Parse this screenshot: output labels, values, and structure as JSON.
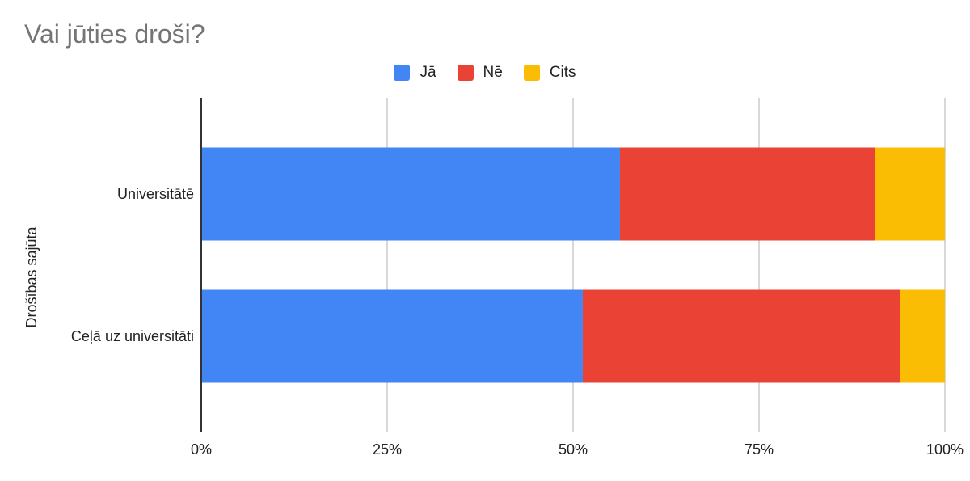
{
  "chart_data": {
    "type": "bar",
    "orientation": "horizontal",
    "stacked": "percent",
    "title": "Vai jūties droši?",
    "xlabel": "",
    "ylabel": "Drošības sajūta",
    "categories": [
      "Universitātē",
      "Ceļā uz universitāti"
    ],
    "series": [
      {
        "name": "Jā",
        "color": "#4285F4",
        "values": [
          56.3,
          51.3
        ]
      },
      {
        "name": "Nē",
        "color": "#EA4335",
        "values": [
          34.3,
          42.7
        ]
      },
      {
        "name": "Cits",
        "color": "#FBBC04",
        "values": [
          9.4,
          6.0
        ]
      }
    ],
    "xlim": [
      0,
      100
    ],
    "xticks": [
      "0%",
      "25%",
      "50%",
      "75%",
      "100%"
    ],
    "grid": true,
    "legend_position": "top"
  }
}
